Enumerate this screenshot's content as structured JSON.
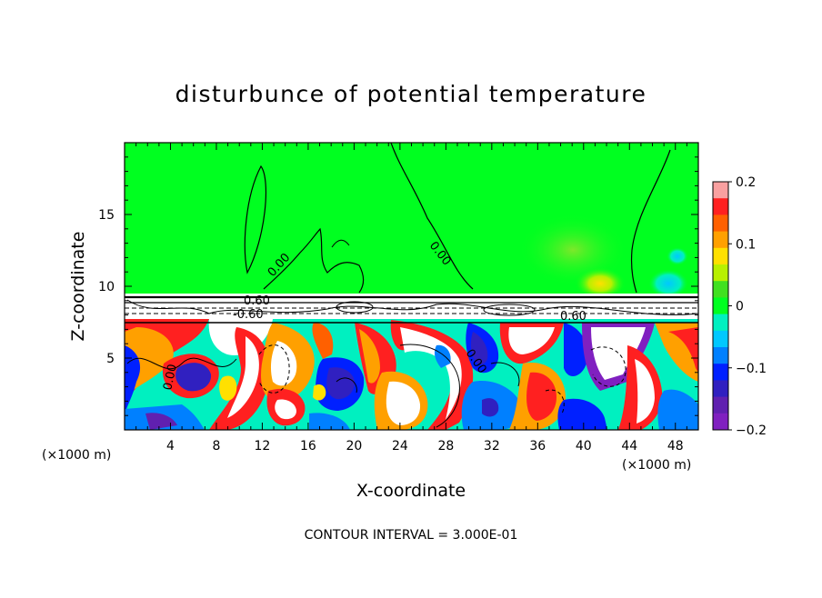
{
  "chart_data": {
    "type": "heatmap",
    "title": "disturbunce of potential temperature",
    "xlabel": "X-coordinate",
    "ylabel": "Z-coordinate",
    "x_unit_left": "(×1000 m)",
    "x_unit_right": "(×1000 m)",
    "xlim": [
      0,
      50
    ],
    "ylim": [
      0,
      20
    ],
    "x_ticks": [
      "4",
      "8",
      "12",
      "16",
      "20",
      "24",
      "28",
      "32",
      "36",
      "40",
      "44",
      "48"
    ],
    "y_ticks": [
      "5",
      "10",
      "15"
    ],
    "colorbar": {
      "min": -0.2,
      "max": 0.2,
      "tick_labels": [
        "0.2",
        "0.1",
        "0",
        "−0.1",
        "−0.2"
      ],
      "colors": [
        "#f9a0a0",
        "#ff2020",
        "#ff6000",
        "#ffa000",
        "#ffe000",
        "#b8f000",
        "#40e020",
        "#00ff20",
        "#00f0c0",
        "#00c8ff",
        "#0080ff",
        "#0020ff",
        "#3020c0",
        "#6020b0",
        "#8020c0"
      ]
    },
    "contour_labels": [
      "0.00",
      "0.00",
      "0.60",
      "-0.60",
      "0.60",
      "0.00",
      "0.00"
    ],
    "contour_interval_text": "CONTOUR INTERVAL = 3.000E-01"
  }
}
